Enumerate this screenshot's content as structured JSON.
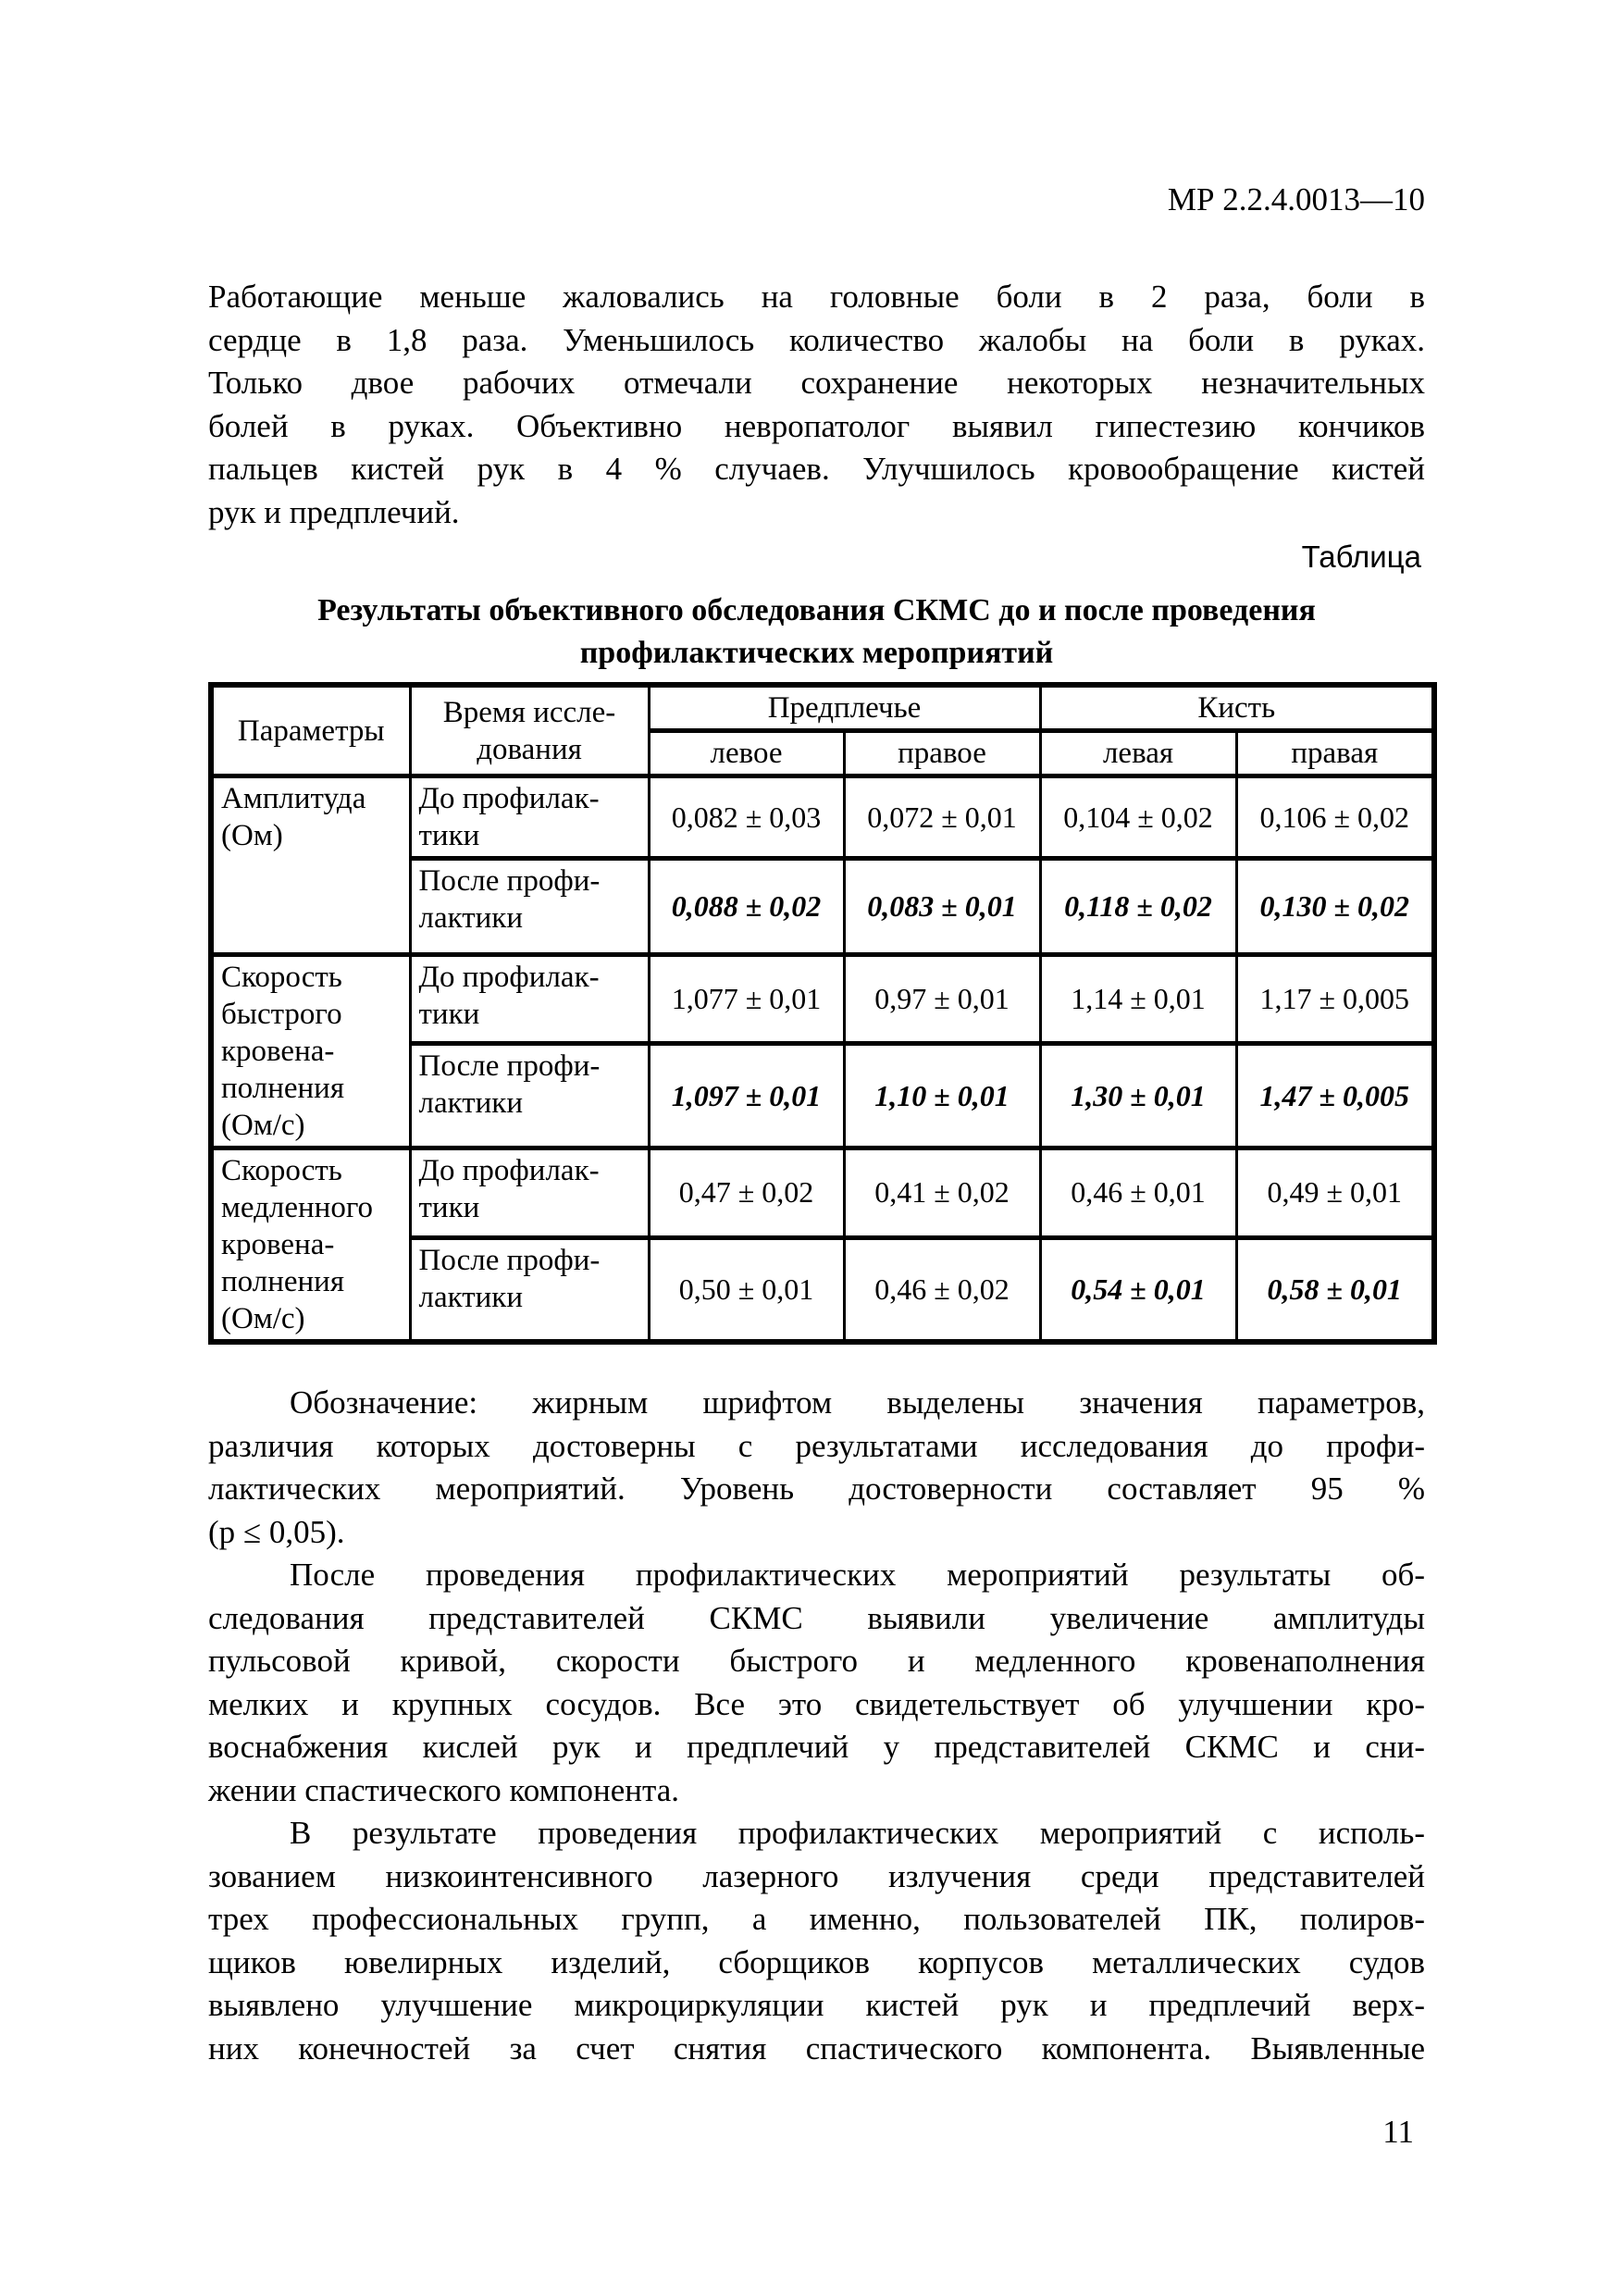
{
  "document": {
    "number": "МР 2.2.4.0013—10",
    "page_number": "11",
    "table_caption": "Таблица",
    "table_title": [
      "Результаты объективного обследования СКМС до и после проведения",
      "профилактических мероприятий"
    ]
  },
  "paragraphs": {
    "intro": {
      "indent": false,
      "justify_last": false,
      "lines": [
        "Работающие меньше жаловались на головные боли в 2 раза, боли в",
        "сердце в 1,8 раза. Уменьшилось количество жалобы на боли в руках.",
        "Только двое рабочих отмечали сохранение некоторых незначительных",
        "болей в руках. Объективно невропатолог выявил гипестезию кончиков",
        "пальцев кистей рук в 4 % случаев. Улучшилось кровообращение кистей",
        "рук и предплечий."
      ]
    },
    "notation": {
      "indent": true,
      "justify_last": false,
      "lines": [
        "Обозначение: жирным шрифтом выделены значения параметров,",
        "различия которых достоверны с результатами исследования до профи-",
        "лактических мероприятий. Уровень достоверности составляет 95 %",
        "(p ≤ 0,05)."
      ]
    },
    "after_measures": {
      "indent": true,
      "justify_last": false,
      "lines": [
        "После проведения профилактических мероприятий результаты об-",
        "следования представителей СКМС выявили увеличение амплитуды",
        "пульсовой кривой, скорости быстрого и медленного кровенаполнения",
        "мелких и крупных сосудов. Все это свидетельствует об улучшении кро-",
        "воснабжения кислей рук и предплечий у представителей СКМС и сни-",
        "жении спастического компонента."
      ]
    },
    "result": {
      "indent": true,
      "justify_last": true,
      "lines": [
        "В результате проведения профилактических мероприятий с исполь-",
        "зованием низкоинтенсивного лазерного излучения среди представителей",
        "трех профессиональных групп, а именно, пользователей ПК, полиров-",
        "щиков ювелирных изделий, сборщиков корпусов металлических судов",
        "выявлено улучшение микроциркуляции кистей рук и предплечий верх-",
        "них конечностей за счет снятия спастического компонента. Выявленные"
      ]
    }
  },
  "table": {
    "header": {
      "parameters": "Параметры",
      "time": [
        "Время иссле-",
        "дования"
      ],
      "forearm": "Предплечье",
      "hand": "Кисть",
      "sub": [
        "левое",
        "правое",
        "левая",
        "правая"
      ]
    },
    "groups": [
      {
        "parameter": [
          "Амплитуда",
          "(Ом)"
        ],
        "rows": [
          {
            "time": [
              "До профилак-",
              "тики"
            ],
            "cells": [
              {
                "v": "0,082 ± 0,03",
                "sig": false
              },
              {
                "v": "0,072 ± 0,01",
                "sig": false
              },
              {
                "v": "0,104 ± 0,02",
                "sig": false
              },
              {
                "v": "0,106 ± 0,02",
                "sig": false
              }
            ]
          },
          {
            "time": [
              "После профи-",
              "лактики"
            ],
            "cells": [
              {
                "v": "0,088 ± 0,02",
                "sig": true
              },
              {
                "v": "0,083 ± 0,01",
                "sig": true
              },
              {
                "v": "0,118 ± 0,02",
                "sig": true
              },
              {
                "v": "0,130 ± 0,02",
                "sig": true
              }
            ]
          }
        ]
      },
      {
        "parameter": [
          "Скорость",
          "быстрого",
          "кровена-",
          "полнения",
          "(Ом/с)"
        ],
        "rows": [
          {
            "time": [
              "До профилак-",
              "тики"
            ],
            "cells": [
              {
                "v": "1,077 ± 0,01",
                "sig": false
              },
              {
                "v": "0,97 ± 0,01",
                "sig": false
              },
              {
                "v": "1,14 ± 0,01",
                "sig": false
              },
              {
                "v": "1,17 ± 0,005",
                "sig": false
              }
            ]
          },
          {
            "time": [
              "После профи-",
              "лактики"
            ],
            "cells": [
              {
                "v": "1,097 ± 0,01",
                "sig": true
              },
              {
                "v": "1,10 ± 0,01",
                "sig": true
              },
              {
                "v": "1,30 ± 0,01",
                "sig": true
              },
              {
                "v": "1,47 ± 0,005",
                "sig": true
              }
            ]
          }
        ]
      },
      {
        "parameter": [
          "Скорость",
          "медленного",
          "кровена-",
          "полнения",
          "(Ом/с)"
        ],
        "rows": [
          {
            "time": [
              "До профилак-",
              "тики"
            ],
            "cells": [
              {
                "v": "0,47 ± 0,02",
                "sig": false
              },
              {
                "v": "0,41 ± 0,02",
                "sig": false
              },
              {
                "v": "0,46 ± 0,01",
                "sig": false
              },
              {
                "v": "0,49 ± 0,01",
                "sig": false
              }
            ]
          },
          {
            "time": [
              "После профи-",
              "лактики"
            ],
            "cells": [
              {
                "v": "0,50 ± 0,01",
                "sig": false
              },
              {
                "v": "0,46 ± 0,02",
                "sig": false
              },
              {
                "v": "0,54 ± 0,01",
                "sig": true
              },
              {
                "v": "0,58 ± 0,01",
                "sig": true
              }
            ]
          }
        ]
      }
    ]
  }
}
